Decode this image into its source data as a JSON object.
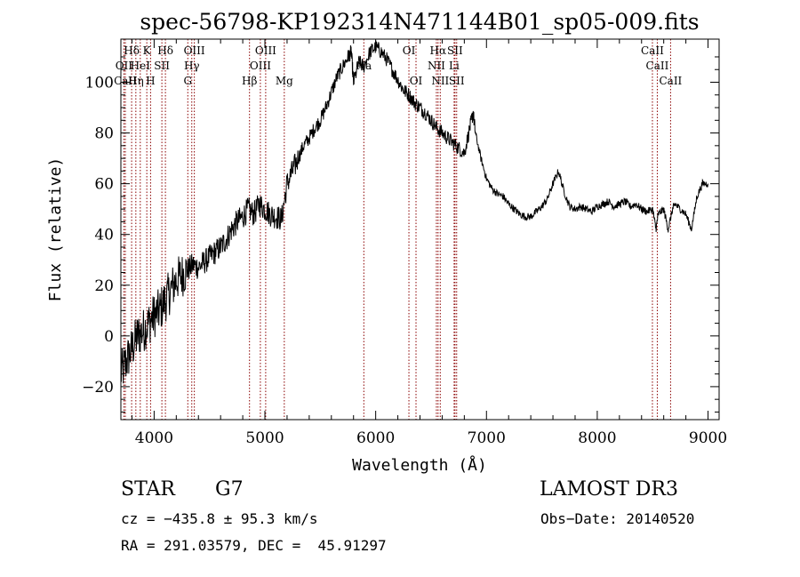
{
  "chart_data": {
    "type": "line",
    "title": "spec-56798-KP192314N471144B01_sp05-009.fits",
    "xlabel": "Wavelength (Å)",
    "ylabel": "Flux (relative)",
    "xlim": [
      3700,
      9100
    ],
    "ylim": [
      -33,
      117
    ],
    "xticks": [
      4000,
      5000,
      6000,
      7000,
      8000,
      9000
    ],
    "yticks": [
      -20,
      0,
      20,
      40,
      60,
      80,
      100
    ],
    "grid": false,
    "line_color": "#000000",
    "marker_color": "#8b0000",
    "series": [
      {
        "x": [
          3700,
          3750,
          3800,
          3850,
          3900,
          3950,
          4000,
          4050,
          4100,
          4150,
          4200,
          4250,
          4300,
          4350,
          4400,
          4450,
          4500,
          4550,
          4600,
          4650,
          4700,
          4750,
          4800,
          4850,
          4900,
          4950,
          5000,
          5050,
          5100,
          5150,
          5200,
          5250,
          5300,
          5350,
          5400,
          5450,
          5500,
          5550,
          5600,
          5650,
          5700,
          5750,
          5780,
          5800,
          5850,
          5890,
          5950,
          6000,
          6050,
          6100,
          6150,
          6200,
          6250,
          6300,
          6350,
          6400,
          6450,
          6500,
          6550,
          6600,
          6650,
          6700,
          6750,
          6800,
          6850,
          6880,
          6900,
          6950,
          7000,
          7050,
          7100,
          7150,
          7200,
          7250,
          7300,
          7350,
          7400,
          7450,
          7500,
          7550,
          7600,
          7650,
          7700,
          7750,
          7800,
          7850,
          7900,
          7950,
          8000,
          8050,
          8100,
          8150,
          8200,
          8250,
          8300,
          8350,
          8400,
          8450,
          8500,
          8530,
          8550,
          8600,
          8640,
          8680,
          8700,
          8750,
          8800,
          8850,
          8900,
          8950,
          9000
        ],
        "y": [
          -15,
          -10,
          -5,
          0,
          2,
          5,
          8,
          10,
          14,
          18,
          22,
          24,
          26,
          28,
          27,
          29,
          31,
          33,
          35,
          38,
          42,
          45,
          47,
          50,
          48,
          52,
          50,
          48,
          47,
          46,
          60,
          65,
          70,
          75,
          78,
          82,
          85,
          90,
          96,
          102,
          106,
          110,
          112,
          100,
          108,
          106,
          112,
          114,
          112,
          109,
          105,
          101,
          97,
          95,
          92,
          90,
          88,
          85,
          82,
          80,
          78,
          76,
          74,
          72,
          82,
          88,
          80,
          70,
          62,
          58,
          56,
          55,
          52,
          50,
          48,
          47,
          47,
          49,
          51,
          54,
          60,
          65,
          57,
          51,
          50,
          51,
          50,
          49,
          51,
          52,
          53,
          51,
          52,
          53,
          51,
          52,
          50,
          49,
          50,
          42,
          48,
          50,
          42,
          50,
          52,
          50,
          48,
          42,
          55,
          60,
          60
        ]
      }
    ],
    "annotations": [
      {
        "label": "Hδ",
        "x": 3797,
        "row": 0
      },
      {
        "label": "OII",
        "x": 3727,
        "row": 1
      },
      {
        "label": "CaII",
        "x": 3740,
        "row": 2
      },
      {
        "label": "K",
        "x": 3934,
        "row": 0
      },
      {
        "label": "HeI",
        "x": 3875,
        "row": 1
      },
      {
        "label": "Hη",
        "x": 3835,
        "row": 2
      },
      {
        "label": "Hδ",
        "x": 4102,
        "row": 0
      },
      {
        "label": "SII",
        "x": 4070,
        "row": 1
      },
      {
        "label": "H",
        "x": 3968,
        "row": 2
      },
      {
        "label": "OIII",
        "x": 4363,
        "row": 0
      },
      {
        "label": "Hγ",
        "x": 4340,
        "row": 1
      },
      {
        "label": "G",
        "x": 4304,
        "row": 2
      },
      {
        "label": "Hβ",
        "x": 4861,
        "row": 2
      },
      {
        "label": "OIII",
        "x": 5007,
        "row": 0
      },
      {
        "label": "OIII",
        "x": 4959,
        "row": 1
      },
      {
        "label": "Mg",
        "x": 5175,
        "row": 2
      },
      {
        "label": "Na",
        "x": 5893,
        "row": 1
      },
      {
        "label": "OI",
        "x": 6300,
        "row": 0
      },
      {
        "label": "OI",
        "x": 6364,
        "row": 2
      },
      {
        "label": "Hα",
        "x": 6563,
        "row": 0
      },
      {
        "label": "SII",
        "x": 6716,
        "row": 0
      },
      {
        "label": "NII",
        "x": 6548,
        "row": 1
      },
      {
        "label": "Li",
        "x": 6708,
        "row": 1
      },
      {
        "label": "NII",
        "x": 6583,
        "row": 2
      },
      {
        "label": "SII",
        "x": 6731,
        "row": 2
      },
      {
        "label": "CaII",
        "x": 8498,
        "row": 0
      },
      {
        "label": "CaII",
        "x": 8542,
        "row": 1
      },
      {
        "label": "CaII",
        "x": 8662,
        "row": 2
      }
    ]
  },
  "info": {
    "object_class": "STAR",
    "subclass": "G7",
    "survey": "LAMOST DR3",
    "velocity": "cz = −435.8 ± 95.3 km/s",
    "obs_date": "Obs−Date: 20140520",
    "coords": "RA = 291.03579, DEC =  45.91297"
  }
}
